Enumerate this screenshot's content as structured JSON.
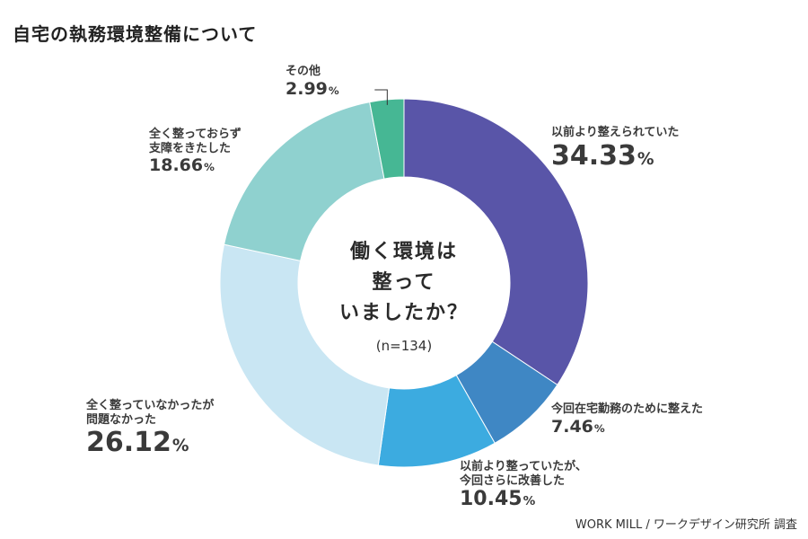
{
  "title": "自宅の執務環境整備について",
  "center": {
    "question_lines": [
      "働く環境は",
      "整って",
      "いましたか？"
    ],
    "sample": "(n=134)"
  },
  "source": "WORK MILL / ワークデザイン研究所 調査",
  "chart_data": {
    "type": "pie",
    "donut": true,
    "title": "自宅の執務環境整備について",
    "slices": [
      {
        "label": "以前より整えられていた",
        "value": 34.33,
        "display": "34.33",
        "color": "#5955a8"
      },
      {
        "label": "今回在宅勤務のために整えた",
        "value": 7.46,
        "display": "7.46",
        "color": "#3f87c4"
      },
      {
        "label": "以前より整っていたが、今回さらに改善した",
        "value": 10.45,
        "display": "10.45",
        "color": "#3cabe0"
      },
      {
        "label": "全く整っていなかったが問題なかった",
        "value": 26.12,
        "display": "26.12",
        "color": "#c9e6f3"
      },
      {
        "label": "全く整っておらず支障をきたした",
        "value": 18.66,
        "display": "18.66",
        "color": "#8fd1cf"
      },
      {
        "label": "その他",
        "value": 2.99,
        "display": "2.99",
        "color": "#46b794"
      }
    ],
    "label_lines": [
      [
        "以前より整えられていた"
      ],
      [
        "今回在宅勤務のために整えた"
      ],
      [
        "以前より整っていたが、",
        "今回さらに改善した"
      ],
      [
        "全く整っていなかったが",
        "問題なかった"
      ],
      [
        "全く整っておらず",
        "支障をきたした"
      ],
      [
        "その他"
      ]
    ],
    "unit": "%"
  }
}
